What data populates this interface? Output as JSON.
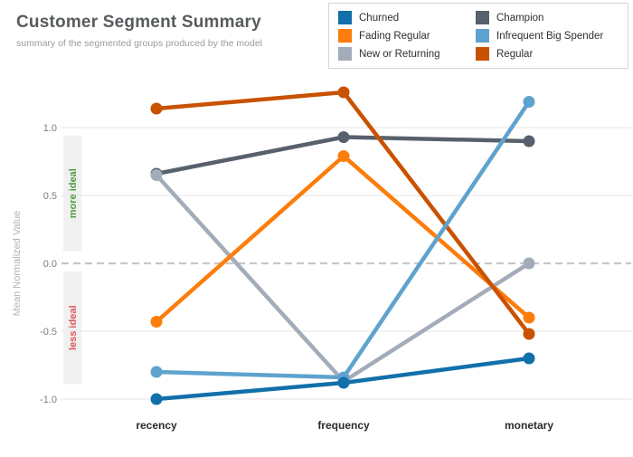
{
  "header": {
    "title": "Customer Segment Summary",
    "subtitle": "summary of the segmented groups produced by the model"
  },
  "legend": {
    "position": "top-right",
    "items": [
      {
        "label": "Churned",
        "color": "#1170aa"
      },
      {
        "label": "Champion",
        "color": "#57606c"
      },
      {
        "label": "Fading Regular",
        "color": "#fc7d0b"
      },
      {
        "label": "Infrequent Big Spender",
        "color": "#5fa2ce"
      },
      {
        "label": "New or Returning",
        "color": "#a3acb9"
      },
      {
        "label": "Regular",
        "color": "#c85200"
      }
    ]
  },
  "chart_data": {
    "type": "line",
    "categories": [
      "recency",
      "frequency",
      "monetary"
    ],
    "series": [
      {
        "name": "Champion",
        "color": "#57606c",
        "values": [
          0.66,
          0.93,
          0.9
        ]
      },
      {
        "name": "New or Returning",
        "color": "#a3acb9",
        "values": [
          0.65,
          -0.87,
          0.0
        ]
      },
      {
        "name": "Fading Regular",
        "color": "#fc7d0b",
        "values": [
          -0.43,
          0.79,
          -0.4
        ]
      },
      {
        "name": "Regular",
        "color": "#c85200",
        "values": [
          1.14,
          1.26,
          -0.52
        ]
      },
      {
        "name": "Infrequent Big Spender",
        "color": "#5fa2ce",
        "values": [
          -0.8,
          -0.84,
          1.19
        ]
      },
      {
        "name": "Churned",
        "color": "#1170aa",
        "values": [
          -1.0,
          -0.88,
          -0.7
        ]
      }
    ],
    "ylabel": "Mean Normalized Value",
    "yticks": [
      1.0,
      0.5,
      0.0,
      -0.5,
      -1.0
    ],
    "ylim": [
      -1.09,
      1.34
    ],
    "grid": true,
    "zero_line": {
      "value": 0.0,
      "style": "dashed",
      "color": "#c7c7c7"
    },
    "annotations": [
      {
        "text": "more ideal",
        "color": "#4e9a3e",
        "band": [
          0.09,
          0.94
        ]
      },
      {
        "text": "less ideal",
        "color": "#e15759",
        "band": [
          -0.89,
          -0.06
        ]
      }
    ],
    "band_fill": "#f0f0f0",
    "gridline_color": "#e9e9e9"
  }
}
